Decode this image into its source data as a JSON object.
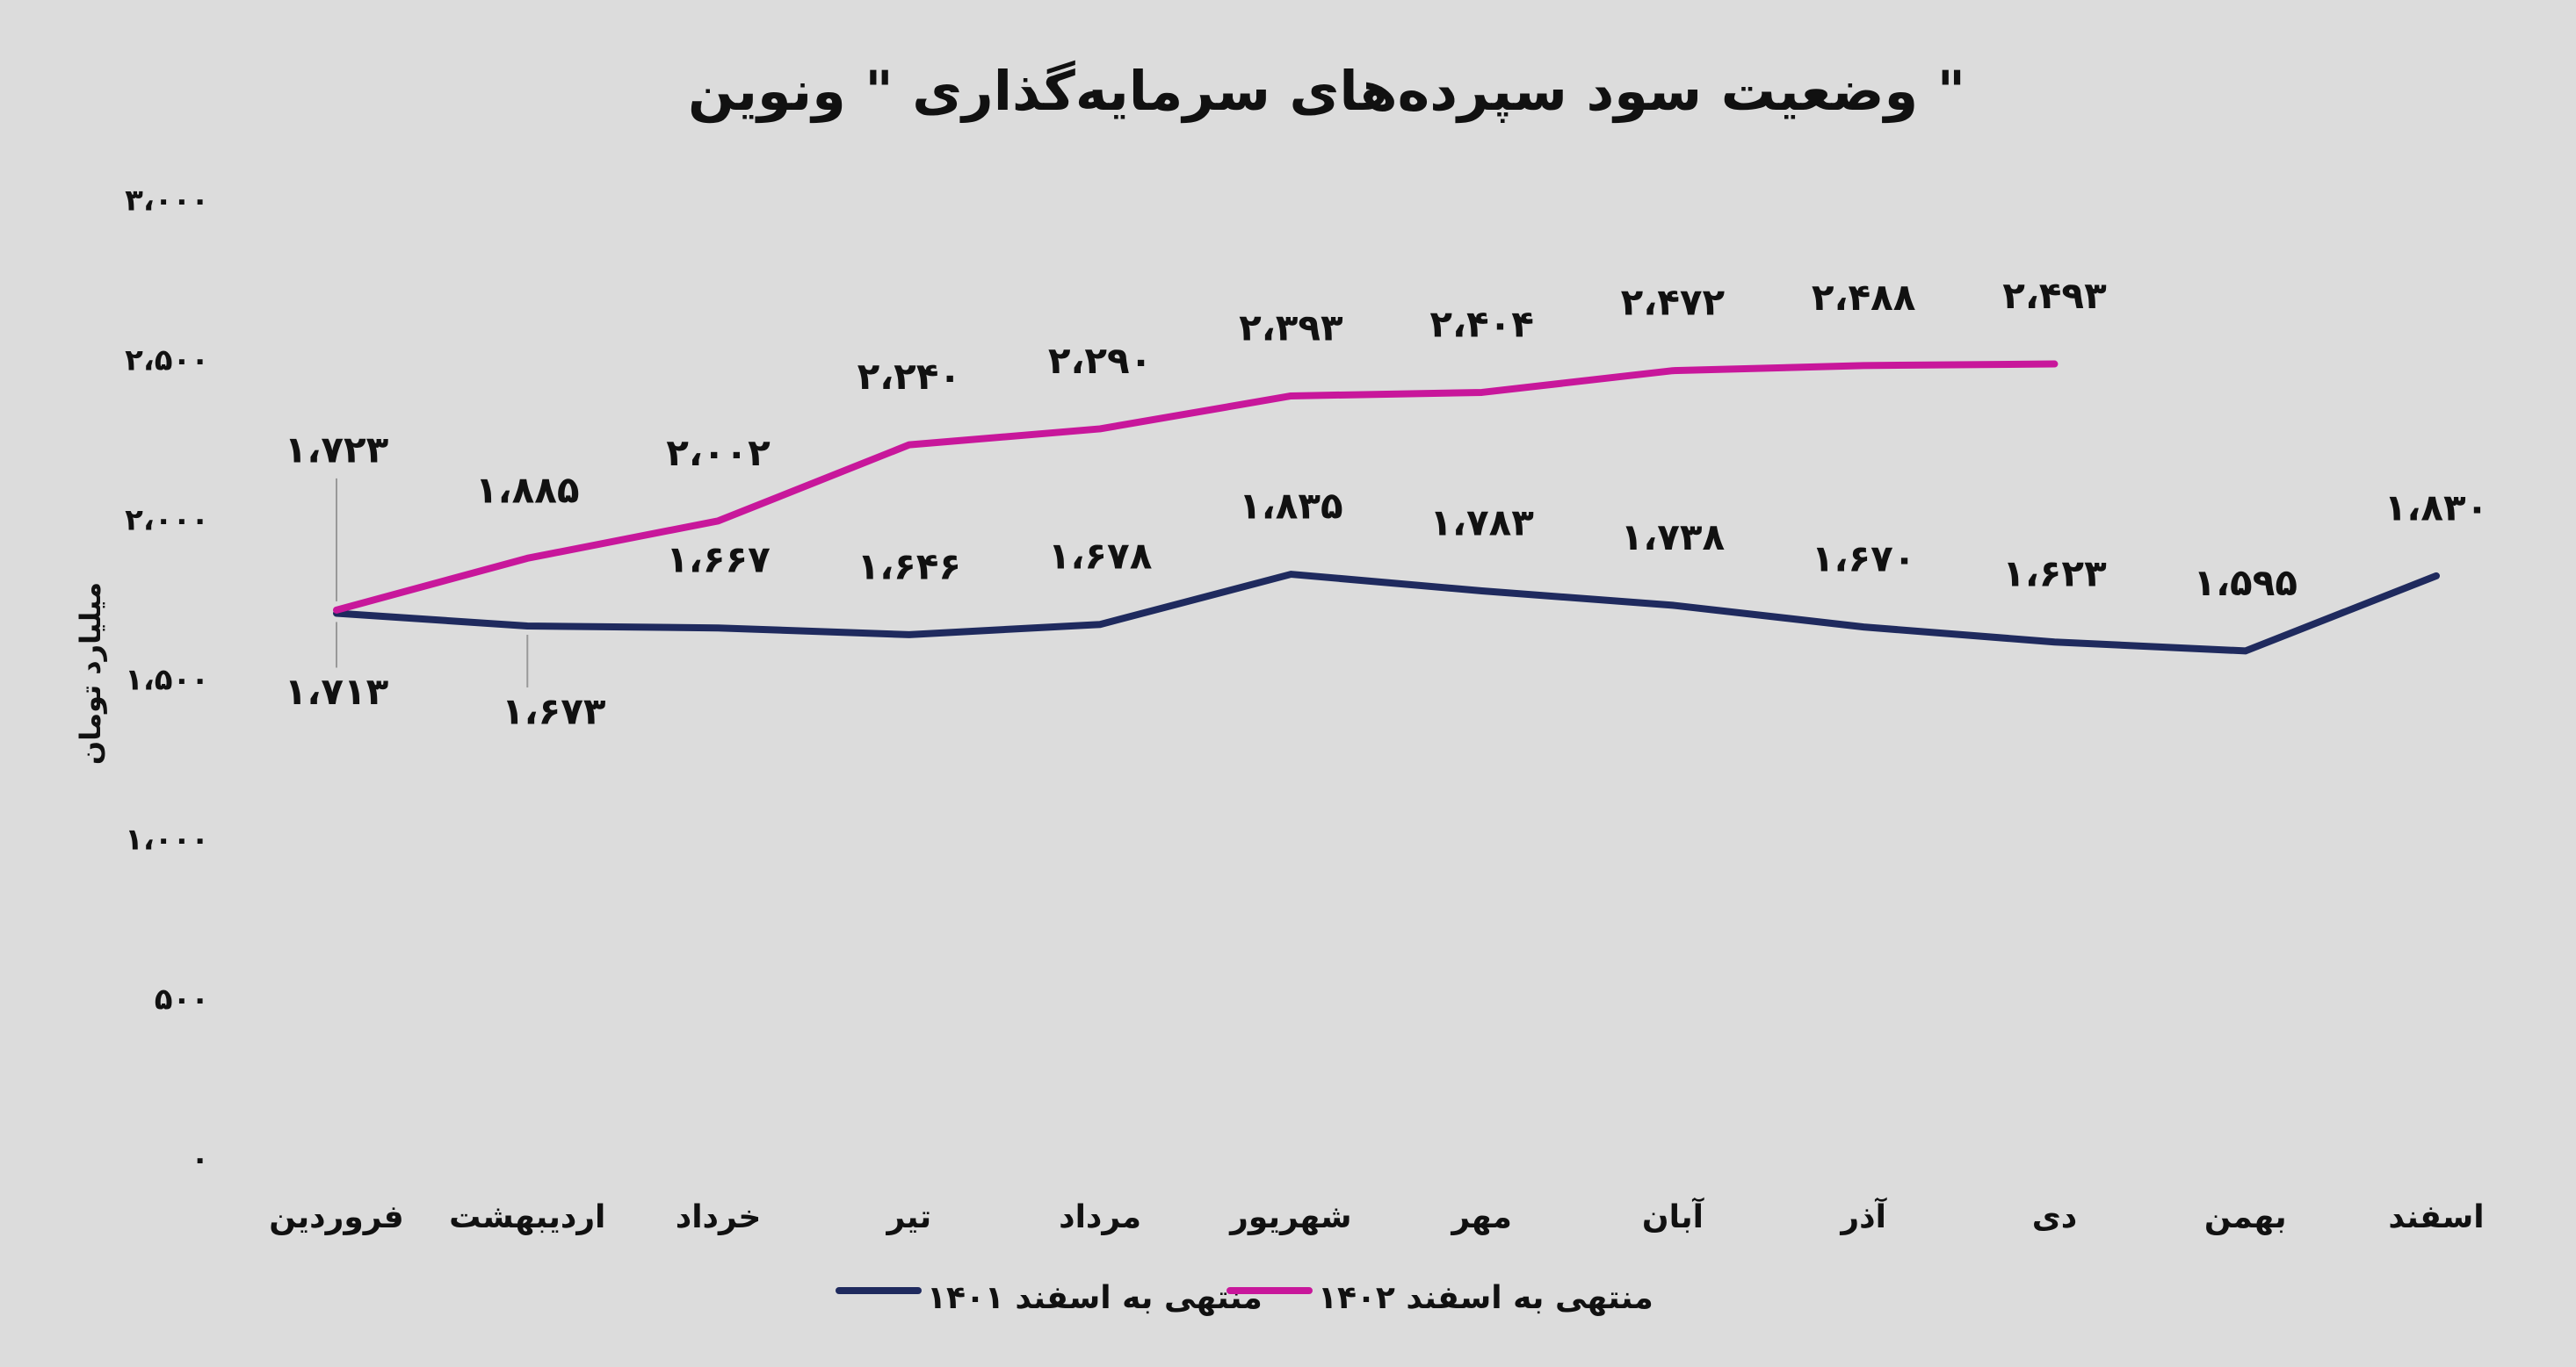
{
  "chart_data": {
    "type": "line",
    "title": "وضعیت سود سپرده‌های سرمایه‌گذاری \" ونوین \"",
    "y_label": "میلیارد تومان",
    "categories": [
      "فروردین",
      "اردیبهشت",
      "خرداد",
      "تیر",
      "مرداد",
      "شهریور",
      "مهر",
      "آبان",
      "آذر",
      "دی",
      "بهمن",
      "اسفند"
    ],
    "series": [
      {
        "name": "منتهی به اسفند ۱۴۰۱",
        "color": "#1f2a5e",
        "values": [
          1713,
          1673,
          1667,
          1646,
          1678,
          1835,
          1783,
          1738,
          1670,
          1623,
          1595,
          1830
        ],
        "value_labels": [
          "۱،۷۱۳",
          "۱،۶۷۳",
          "۱،۶۶۷",
          "۱،۶۴۶",
          "۱،۶۷۸",
          "۱،۸۳۵",
          "۱،۷۸۳",
          "۱،۷۳۸",
          "۱،۶۷۰",
          "۱،۶۲۳",
          "۱،۵۹۵",
          "۱،۸۳۰"
        ]
      },
      {
        "name": "منتهی به اسفند ۱۴۰۲",
        "color": "#c8179b",
        "values": [
          1723,
          1885,
          2002,
          2240,
          2290,
          2393,
          2404,
          2472,
          2488,
          2493,
          null,
          null
        ],
        "value_labels": [
          "۱،۷۲۳",
          "۱،۸۸۵",
          "۲،۰۰۲",
          "۲،۲۴۰",
          "۲،۲۹۰",
          "۲،۳۹۳",
          "۲،۴۰۴",
          "۲،۴۷۲",
          "۲،۴۸۸",
          "۲،۴۹۳",
          null,
          null
        ]
      }
    ],
    "ylim": [
      0,
      3000
    ],
    "yticks": [
      {
        "value": 0,
        "label": "۰"
      },
      {
        "value": 500,
        "label": "۵۰۰"
      },
      {
        "value": 1000,
        "label": "۱،۰۰۰"
      },
      {
        "value": 1500,
        "label": "۱،۵۰۰"
      },
      {
        "value": 2000,
        "label": "۲،۰۰۰"
      },
      {
        "value": 2500,
        "label": "۲،۵۰۰"
      },
      {
        "value": 3000,
        "label": "۳،۰۰۰"
      }
    ],
    "grid": false
  }
}
